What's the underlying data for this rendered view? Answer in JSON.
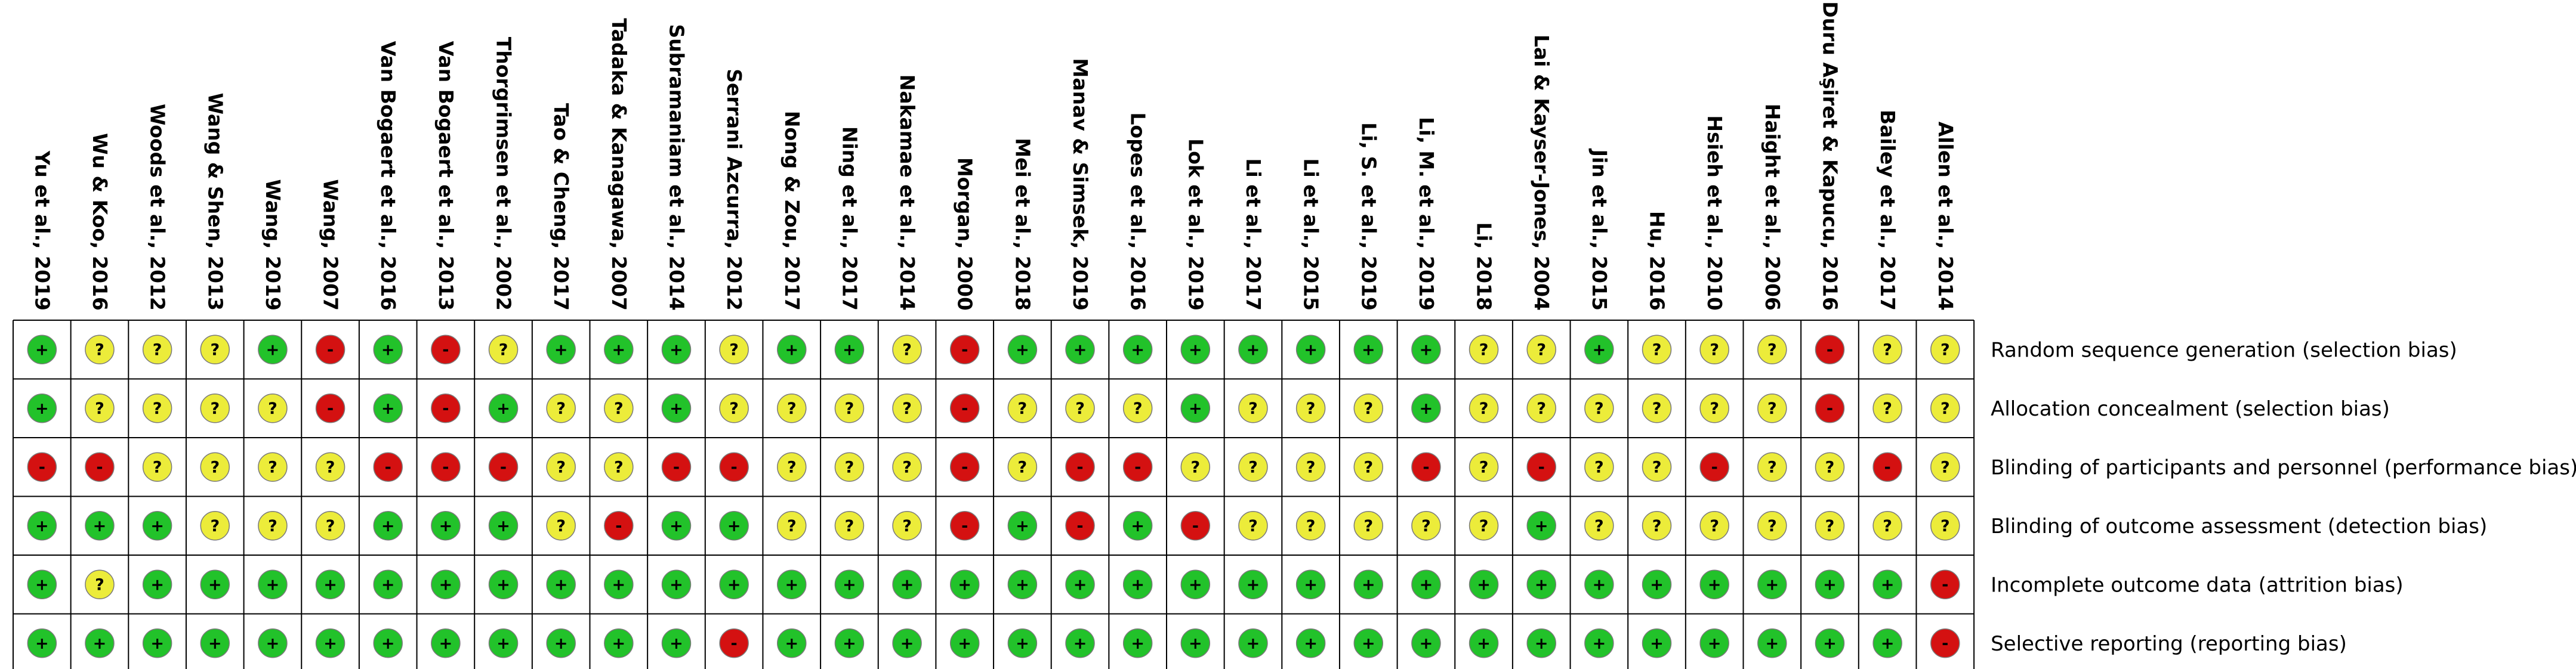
{
  "chart_data": {
    "type": "table",
    "legend": {
      "low": {
        "symbol": "+",
        "color": "#22c22a"
      },
      "unclear": {
        "symbol": "?",
        "color": "#ecec3a"
      },
      "high": {
        "symbol": "-",
        "color": "#d41111"
      }
    },
    "studies": [
      "Yu et al., 2019",
      "Wu & Koo, 2016",
      "Woods et al., 2012",
      "Wang & Shen, 2013",
      "Wang, 2019",
      "Wang, 2007",
      "Van Bogaert et al., 2016",
      "Van Bogaert et al., 2013",
      "Thorgrimsen et al., 2002",
      "Tao & Cheng, 2017",
      "Tadaka & Kanagawa, 2007",
      "Subramaniam et al., 2014",
      "Serrani Azcurra, 2012",
      "Nong & Zou, 2017",
      "Ning et al., 2017",
      "Nakamae et al., 2014",
      "Morgan, 2000",
      "Mei et al., 2018",
      "Manav & Simsek, 2019",
      "Lopes et al., 2016",
      "Lok et al., 2019",
      "Li et al., 2017",
      "Li et al., 2015",
      "Li, S. et al., 2019",
      "Li, M. et al., 2019",
      "Li, 2018",
      "Lai & Kayser-Jones, 2004",
      "Jin et al., 2015",
      "Hu, 2016",
      "Hsieh et al., 2010",
      "Haight et al., 2006",
      "Duru Aşiret & Kapucu, 2016",
      "Bailey et al., 2017",
      "Allen et al., 2014"
    ],
    "domains": [
      "Random sequence generation (selection bias)",
      "Allocation concealment (selection bias)",
      "Blinding of participants and personnel (performance bias)",
      "Blinding of outcome assessment (detection bias)",
      "Incomplete outcome data (attrition bias)",
      "Selective reporting (reporting bias)"
    ],
    "judgements": [
      [
        "+",
        "?",
        "?",
        "?",
        "+",
        "-",
        "+",
        "-",
        "?",
        "+",
        "+",
        "+",
        "?",
        "+",
        "+",
        "?",
        "-",
        "+",
        "+",
        "+",
        "+",
        "+",
        "+",
        "+",
        "+",
        "?",
        "?",
        "+",
        "?",
        "?",
        "?",
        "-",
        "?",
        "?"
      ],
      [
        "+",
        "?",
        "?",
        "?",
        "?",
        "-",
        "+",
        "-",
        "+",
        "?",
        "?",
        "+",
        "?",
        "?",
        "?",
        "?",
        "-",
        "?",
        "?",
        "?",
        "+",
        "?",
        "?",
        "?",
        "+",
        "?",
        "?",
        "?",
        "?",
        "?",
        "?",
        "-",
        "?",
        "?"
      ],
      [
        "-",
        "-",
        "?",
        "?",
        "?",
        "?",
        "-",
        "-",
        "-",
        "?",
        "?",
        "-",
        "-",
        "?",
        "?",
        "?",
        "-",
        "?",
        "-",
        "-",
        "?",
        "?",
        "?",
        "?",
        "-",
        "?",
        "-",
        "?",
        "?",
        "-",
        "?",
        "?",
        "-",
        "?"
      ],
      [
        "+",
        "+",
        "+",
        "?",
        "?",
        "?",
        "+",
        "+",
        "+",
        "?",
        "-",
        "+",
        "+",
        "?",
        "?",
        "?",
        "-",
        "+",
        "-",
        "+",
        "-",
        "?",
        "?",
        "?",
        "?",
        "?",
        "+",
        "?",
        "?",
        "?",
        "?",
        "?",
        "?",
        "?"
      ],
      [
        "+",
        "?",
        "+",
        "+",
        "+",
        "+",
        "+",
        "+",
        "+",
        "+",
        "+",
        "+",
        "+",
        "+",
        "+",
        "+",
        "+",
        "+",
        "+",
        "+",
        "+",
        "+",
        "+",
        "+",
        "+",
        "+",
        "+",
        "+",
        "+",
        "+",
        "+",
        "+",
        "+",
        "-"
      ],
      [
        "+",
        "+",
        "+",
        "+",
        "+",
        "+",
        "+",
        "+",
        "+",
        "+",
        "+",
        "+",
        "-",
        "+",
        "+",
        "+",
        "+",
        "+",
        "+",
        "+",
        "+",
        "+",
        "+",
        "+",
        "+",
        "+",
        "+",
        "+",
        "+",
        "+",
        "+",
        "+",
        "+",
        "-"
      ]
    ]
  }
}
